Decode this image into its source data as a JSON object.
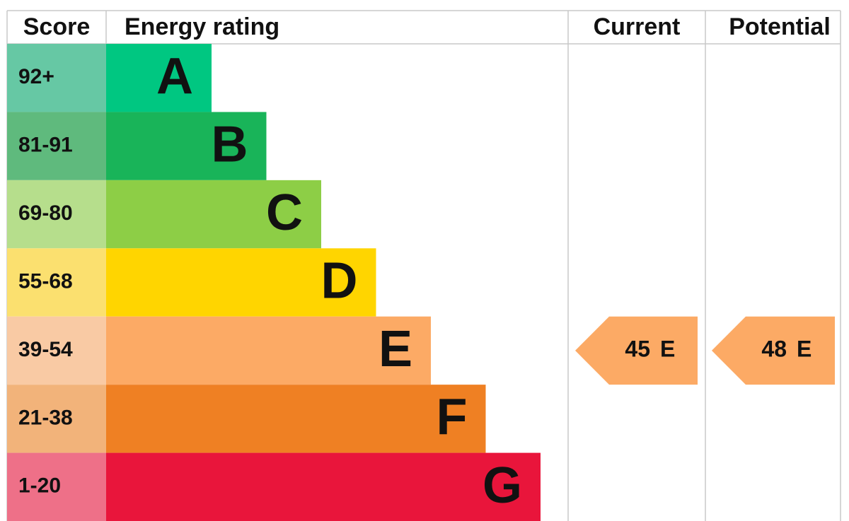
{
  "header": {
    "score": "Score",
    "rating": "Energy rating",
    "current": "Current",
    "potential": "Potential"
  },
  "bands": [
    {
      "score": "92+",
      "letter": "A",
      "color": "#00c781",
      "score_color": "#66c8a4"
    },
    {
      "score": "81-91",
      "letter": "B",
      "color": "#19b459",
      "score_color": "#5fba7d"
    },
    {
      "score": "69-80",
      "letter": "C",
      "color": "#8dce46",
      "score_color": "#b6de8c"
    },
    {
      "score": "55-68",
      "letter": "D",
      "color": "#ffd500",
      "score_color": "#fbe06f"
    },
    {
      "score": "39-54",
      "letter": "E",
      "color": "#fcaa65",
      "score_color": "#f9caa4"
    },
    {
      "score": "21-38",
      "letter": "F",
      "color": "#ef8023",
      "score_color": "#f2b37a"
    },
    {
      "score": "1-20",
      "letter": "G",
      "color": "#e9153b",
      "score_color": "#ee7088"
    }
  ],
  "current": {
    "value": "45",
    "rating": "E"
  },
  "potential": {
    "value": "48",
    "rating": "E"
  }
}
